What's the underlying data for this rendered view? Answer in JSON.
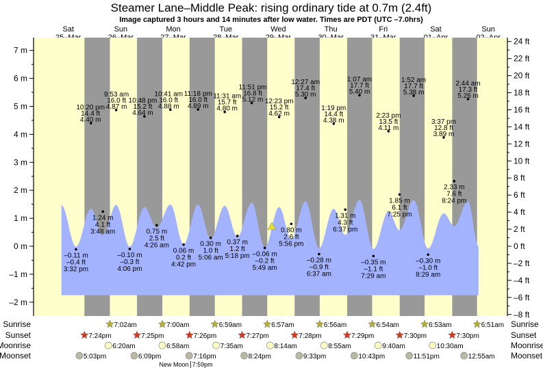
{
  "chart_data": {
    "type": "line",
    "title": "Steamer Lane–Middle Peak: rising  ordinary tide at 0.7m (2.4ft)",
    "subtitle": "Image captured 3 hours and 14 minutes after low water. Times are PDT (UTC –7.0hrs)",
    "days": [
      {
        "dow": "Sat",
        "date": "25–Mar"
      },
      {
        "dow": "Sun",
        "date": "26–Mar"
      },
      {
        "dow": "Mon",
        "date": "27–Mar"
      },
      {
        "dow": "Tue",
        "date": "28–Mar"
      },
      {
        "dow": "Wed",
        "date": "29–Mar"
      },
      {
        "dow": "Thu",
        "date": "30–Mar"
      },
      {
        "dow": "Fri",
        "date": "31–Mar"
      },
      {
        "dow": "Sat",
        "date": "01–Apr"
      },
      {
        "dow": "Sun",
        "date": "02–Apr"
      }
    ],
    "left_axis": {
      "unit": "m",
      "ylim": [
        -2.5,
        7.45
      ],
      "ticks": [
        "7 m",
        "6 m",
        "5 m",
        "4 m",
        "3 m",
        "2 m",
        "1 m",
        "0 m",
        "–1 m",
        "–2 m"
      ]
    },
    "right_axis": {
      "unit": "ft",
      "ticks": [
        "24 ft",
        "22 ft",
        "20 ft",
        "18 ft",
        "16 ft",
        "14 ft",
        "12 ft",
        "10 ft",
        "8 ft",
        "6 ft",
        "4 ft",
        "2 ft",
        "0 ft",
        "–2 ft",
        "–4 ft",
        "–6 ft",
        "–8 ft"
      ]
    },
    "current_level_m": 0.7,
    "current_time": {
      "date": "29–Mar",
      "time": "9:03am"
    },
    "tides": [
      {
        "date": "25–Mar",
        "time": "3:32 pm",
        "type": "low",
        "m": "–0.11 m",
        "ft": "–0.4 ft",
        "value": -0.11,
        "curve_m": -0.02
      },
      {
        "date": "25–Mar",
        "time": "10:20 pm",
        "type": "high",
        "m": "4.40 m",
        "ft": "14.4 ft",
        "value": 4.4,
        "curve_m": 1.34
      },
      {
        "date": "26–Mar",
        "time": "3:48 am",
        "type": "low",
        "m": "1.24 m",
        "ft": "4.1 ft",
        "value": 1.24,
        "curve_m": 0.39
      },
      {
        "date": "26–Mar",
        "time": "9:53 am",
        "type": "high",
        "m": "4.87 m",
        "ft": "16.0 ft",
        "value": 4.87,
        "curve_m": 1.48
      },
      {
        "date": "26–Mar",
        "time": "4:06 pm",
        "type": "low",
        "m": "–0.10 m",
        "ft": "–0.3 ft",
        "value": -0.1,
        "curve_m": -0.02
      },
      {
        "date": "26–Mar",
        "time": "10:48 pm",
        "type": "high",
        "m": "4.64 m",
        "ft": "15.2 ft",
        "value": 4.64,
        "curve_m": 1.4
      },
      {
        "date": "27–Mar",
        "time": "4:26 am",
        "type": "low",
        "m": "0.75 m",
        "ft": "2.5 ft",
        "value": 0.75,
        "curve_m": 0.66
      },
      {
        "date": "27–Mar",
        "time": "10:41 am",
        "type": "high",
        "m": "4.88 m",
        "ft": "16.0 ft",
        "value": 4.88,
        "curve_m": 1.49
      },
      {
        "date": "27–Mar",
        "time": "4:42 pm",
        "type": "low",
        "m": "0.06 m",
        "ft": "0.2 ft",
        "value": 0.06,
        "curve_m": 0.07
      },
      {
        "date": "27–Mar",
        "time": "11:18 pm",
        "type": "high",
        "m": "4.89 m",
        "ft": "16.0 ft",
        "value": 4.89,
        "curve_m": 1.49
      },
      {
        "date": "28–Mar",
        "time": "5:06 am",
        "type": "low",
        "m": "0.30 m",
        "ft": "1.0 ft",
        "value": 0.3,
        "curve_m": 0.27
      },
      {
        "date": "28–Mar",
        "time": "11:31 am",
        "type": "high",
        "m": "4.80 m",
        "ft": "15.7 ft",
        "value": 4.8,
        "curve_m": 1.45
      },
      {
        "date": "28–Mar",
        "time": "5:18 pm",
        "type": "low",
        "m": "0.37 m",
        "ft": "1.2 ft",
        "value": 0.37,
        "curve_m": 0.33
      },
      {
        "date": "28–Mar",
        "time": "11:51 pm",
        "type": "high",
        "m": "5.12 m",
        "ft": "16.8 ft",
        "value": 5.12,
        "curve_m": 1.56
      },
      {
        "date": "29–Mar",
        "time": "5:49 am",
        "type": "low",
        "m": "–0.06 m",
        "ft": "–0.2 ft",
        "value": -0.06,
        "curve_m": -0.04
      },
      {
        "date": "29–Mar",
        "time": "12:23 pm",
        "type": "high",
        "m": "4.62 m",
        "ft": "15.2 ft",
        "value": 4.62,
        "curve_m": 1.4
      },
      {
        "date": "29–Mar",
        "time": "5:56 pm",
        "type": "low",
        "m": "0.80 m",
        "ft": "2.6 ft",
        "value": 0.8,
        "curve_m": 0.25
      },
      {
        "date": "30–Mar",
        "time": "12:27 am",
        "type": "high",
        "m": "5.30 m",
        "ft": "17.4 ft",
        "value": 5.3,
        "curve_m": 1.61
      },
      {
        "date": "30–Mar",
        "time": "6:37 am",
        "type": "low",
        "m": "–0.28 m",
        "ft": "–0.9 ft",
        "value": -0.28,
        "curve_m": -0.07
      },
      {
        "date": "30–Mar",
        "time": "1:19 pm",
        "type": "high",
        "m": "4.38 m",
        "ft": "14.4 ft",
        "value": 4.38,
        "curve_m": 1.34
      },
      {
        "date": "30–Mar",
        "time": "6:37 pm",
        "type": "low",
        "m": "1.31 m",
        "ft": "4.3 ft",
        "value": 1.31,
        "curve_m": 0.41
      },
      {
        "date": "31–Mar",
        "time": "1:07 am",
        "type": "high",
        "m": "5.40 m",
        "ft": "17.7 ft",
        "value": 5.4,
        "curve_m": 1.65
      },
      {
        "date": "31–Mar",
        "time": "7:29 am",
        "type": "low",
        "m": "–0.35 m",
        "ft": "–1.1 ft",
        "value": -0.35,
        "curve_m": -0.1
      },
      {
        "date": "31–Mar",
        "time": "2:23 pm",
        "type": "high",
        "m": "4.11 m",
        "ft": "13.5 ft",
        "value": 4.11,
        "curve_m": 1.25
      },
      {
        "date": "31–Mar",
        "time": "7:25 pm",
        "type": "low",
        "m": "1.85 m",
        "ft": "6.1 ft",
        "value": 1.85,
        "curve_m": 0.57
      },
      {
        "date": "01–Apr",
        "time": "1:52 am",
        "type": "high",
        "m": "5.38 m",
        "ft": "17.7 ft",
        "value": 5.38,
        "curve_m": 1.65
      },
      {
        "date": "01–Apr",
        "time": "8:29 am",
        "type": "low",
        "m": "–0.30 m",
        "ft": "–1.0 ft",
        "value": -0.3,
        "curve_m": -0.08
      },
      {
        "date": "01–Apr",
        "time": "3:37 pm",
        "type": "high",
        "m": "3.89 m",
        "ft": "12.8 ft",
        "value": 3.89,
        "curve_m": 1.18
      },
      {
        "date": "01–Apr",
        "time": "8:24 pm",
        "type": "low",
        "m": "2.33 m",
        "ft": "7.6 ft",
        "value": 2.33,
        "curve_m": 0.72
      },
      {
        "date": "02–Apr",
        "time": "2:44 am",
        "type": "high",
        "m": "5.26 m",
        "ft": "17.3 ft",
        "value": 5.26,
        "curve_m": 1.61
      }
    ],
    "curve_start": {
      "date": "25–Mar",
      "time": "8:52am",
      "m": 1.47
    },
    "curve_end": {
      "date": "02–Apr",
      "time": "7:30am",
      "m": 0.0
    },
    "rows": {
      "sunrise": {
        "label": "Sunrise",
        "events": [
          {
            "date": "26–Mar",
            "time": "7:02am"
          },
          {
            "date": "27–Mar",
            "time": "7:00am"
          },
          {
            "date": "28–Mar",
            "time": "6:59am"
          },
          {
            "date": "29–Mar",
            "time": "6:57am"
          },
          {
            "date": "30–Mar",
            "time": "6:56am"
          },
          {
            "date": "31–Mar",
            "time": "6:54am"
          },
          {
            "date": "01–Apr",
            "time": "6:53am"
          },
          {
            "date": "02–Apr",
            "time": "6:51am"
          }
        ]
      },
      "sunset": {
        "label": "Sunset",
        "events": [
          {
            "date": "25–Mar",
            "time": "7:24pm"
          },
          {
            "date": "26–Mar",
            "time": "7:25pm"
          },
          {
            "date": "27–Mar",
            "time": "7:26pm"
          },
          {
            "date": "28–Mar",
            "time": "7:27pm"
          },
          {
            "date": "29–Mar",
            "time": "7:28pm"
          },
          {
            "date": "30–Mar",
            "time": "7:29pm"
          },
          {
            "date": "31–Mar",
            "time": "7:30pm"
          },
          {
            "date": "01–Apr",
            "time": "7:30pm"
          }
        ]
      },
      "moonrise": {
        "label": "Moonrise",
        "events": [
          {
            "date": "26–Mar",
            "time": "6:20am"
          },
          {
            "date": "27–Mar",
            "time": "6:58am"
          },
          {
            "date": "28–Mar",
            "time": "7:35am"
          },
          {
            "date": "29–Mar",
            "time": "8:14am"
          },
          {
            "date": "30–Mar",
            "time": "8:55am"
          },
          {
            "date": "31–Mar",
            "time": "9:40am"
          },
          {
            "date": "01–Apr",
            "time": "10:30am"
          }
        ]
      },
      "moonset": {
        "label": "Moonset",
        "events": [
          {
            "date": "25–Mar",
            "time": "5:03pm"
          },
          {
            "date": "26–Mar",
            "time": "6:09pm"
          },
          {
            "date": "27–Mar",
            "time": "7:16pm"
          },
          {
            "date": "28–Mar",
            "time": "8:24pm"
          },
          {
            "date": "29–Mar",
            "time": "9:33pm"
          },
          {
            "date": "30–Mar",
            "time": "10:43pm"
          },
          {
            "date": "31–Mar",
            "time": "11:51pm"
          },
          {
            "date": "02–Apr",
            "time": "12:55am"
          }
        ]
      }
    },
    "moon_phase": {
      "label": "New Moon",
      "time": "7:59pm",
      "date": "27–Mar"
    },
    "colors": {
      "day": "#ffffcc",
      "night": "#999999",
      "water": "#a3b3ff",
      "day_label": "#ff0000",
      "sunrise": "#b5ad3a",
      "sunset": "#d23a22",
      "moonrise": "#ffffc4",
      "moonset": "#b9b9a6",
      "marker": "#e8e030"
    }
  }
}
